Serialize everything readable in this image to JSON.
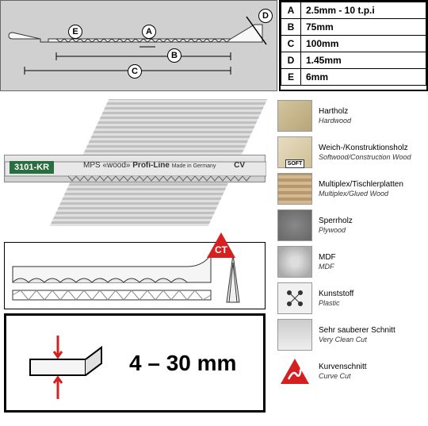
{
  "specs": {
    "rows": [
      {
        "key": "A",
        "value": "2.5mm - 10 t.p.i"
      },
      {
        "key": "B",
        "value": "75mm"
      },
      {
        "key": "C",
        "value": "100mm"
      },
      {
        "key": "D",
        "value": "1.45mm"
      },
      {
        "key": "E",
        "value": "6mm"
      }
    ]
  },
  "blade": {
    "model": "3101-KR",
    "brand": "MPS",
    "line": "Profi-Line",
    "wood_label": "«wood»",
    "origin": "Made in Germany",
    "material": "CV"
  },
  "thickness": {
    "range": "4 – 30 mm"
  },
  "ct_label": "CT",
  "soft_label": "SOFT",
  "materials": [
    {
      "de": "Hartholz",
      "en": "Hardwood",
      "icon_bg": "linear-gradient(135deg,#d4c5a0,#b8a578)"
    },
    {
      "de": "Weich-/Konstruktionsholz",
      "en": "Softwood/Construction Wood",
      "icon_bg": "linear-gradient(135deg,#e8dcc0,#d0c098)",
      "badge": "SOFT"
    },
    {
      "de": "Multiplex/Tischlerplatten",
      "en": "Multiplex/Glued Wood",
      "icon_bg": "repeating-linear-gradient(0deg,#d4b896 0,#d4b896 4px,#b89868 4px,#b89868 8px)"
    },
    {
      "de": "Sperrholz",
      "en": "Plywood",
      "icon_bg": "radial-gradient(#888,#666)"
    },
    {
      "de": "MDF",
      "en": "MDF",
      "icon_bg": "radial-gradient(circle,#ddd 20%,#aaa 80%)"
    },
    {
      "de": "Kunststoff",
      "en": "Plastic",
      "icon_bg": "#f0f0f0"
    },
    {
      "de": "Sehr sauberer Schnitt",
      "en": "Very Clean Cut",
      "icon_bg": "linear-gradient(#ccc,#eee)"
    },
    {
      "de": "Kurvenschnitt",
      "en": "Curve Cut",
      "icon_type": "triangle"
    }
  ],
  "colors": {
    "red": "#d62020",
    "green": "#2a6e3f",
    "diagram_bg": "#d0d0d0"
  },
  "diagram_letters": [
    "A",
    "B",
    "C",
    "D",
    "E"
  ]
}
